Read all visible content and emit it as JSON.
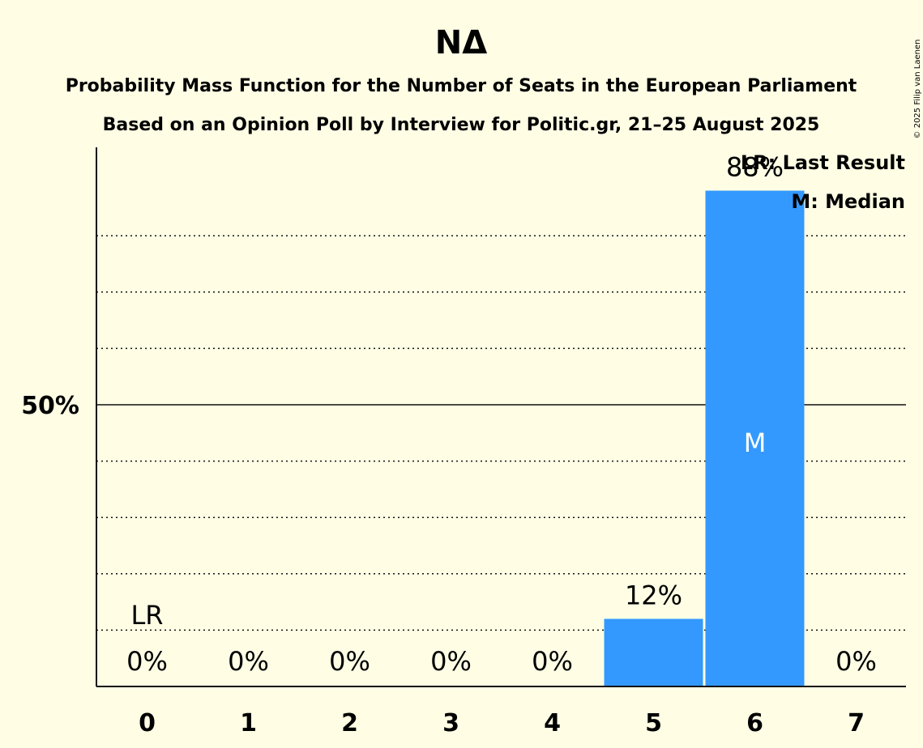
{
  "title": "ΝΔ",
  "subtitle1": "Probability Mass Function for the Number of Seats in the European Parliament",
  "subtitle2": "Based on an Opinion Poll by Interview for Politic.gr, 21–25 August 2025",
  "copyright": "© 2025 Filip van Laenen",
  "legend": {
    "last_result": "LR: Last Result",
    "median": "M: Median"
  },
  "colors": {
    "background": "#FFFEE5",
    "bar": "#3399FF",
    "text": "#111111"
  },
  "chart_data": {
    "type": "bar",
    "categories": [
      "0",
      "1",
      "2",
      "3",
      "4",
      "5",
      "6",
      "7"
    ],
    "values": [
      0,
      0,
      0,
      0,
      0,
      12,
      88,
      0
    ],
    "value_labels": [
      "0%",
      "0%",
      "0%",
      "0%",
      "0%",
      "12%",
      "88%",
      "0%"
    ],
    "ylim": [
      0,
      96
    ],
    "y_ticks": [
      {
        "value": 50,
        "label": "50%"
      }
    ],
    "gridlines": [
      10,
      20,
      30,
      40,
      60,
      70,
      80
    ],
    "last_result_index": 0,
    "last_result_label": "LR",
    "median_index": 6,
    "median_label": "M",
    "grid": true,
    "legend_position": "top-right"
  }
}
